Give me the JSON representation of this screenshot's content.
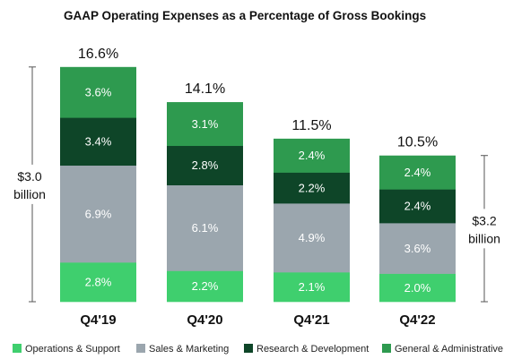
{
  "chart_data": {
    "type": "bar",
    "stacked": true,
    "title": "GAAP Operating Expenses as a Percentage of Gross Bookings",
    "categories": [
      "Q4'19",
      "Q4'20",
      "Q4'21",
      "Q4'22"
    ],
    "series": [
      {
        "name": "Operations & Support",
        "color": "#3fcf6e",
        "values": [
          2.8,
          2.2,
          2.1,
          2.0
        ],
        "labels": [
          "2.8%",
          "2.2%",
          "2.1%",
          "2.0%"
        ]
      },
      {
        "name": "Sales & Marketing",
        "color": "#9ba6ae",
        "values": [
          6.9,
          6.1,
          4.9,
          3.6
        ],
        "labels": [
          "6.9%",
          "6.1%",
          "4.9%",
          "3.6%"
        ]
      },
      {
        "name": "Research & Development",
        "color": "#0e4528",
        "values": [
          3.4,
          2.8,
          2.2,
          2.4
        ],
        "labels": [
          "3.4%",
          "2.8%",
          "2.2%",
          "2.4%"
        ]
      },
      {
        "name": "General & Administrative",
        "color": "#2e9a4f",
        "values": [
          3.6,
          3.1,
          2.4,
          2.4
        ],
        "labels": [
          "3.6%",
          "3.1%",
          "2.4%",
          "2.4%"
        ]
      }
    ],
    "totals": [
      "16.6%",
      "14.1%",
      "11.5%",
      "10.5%"
    ],
    "annotations": [
      {
        "category": "Q4'19",
        "side": "left",
        "lines": [
          "$3.0",
          "billion"
        ]
      },
      {
        "category": "Q4'22",
        "side": "right",
        "lines": [
          "$3.2",
          "billion"
        ]
      }
    ],
    "legend_position": "bottom",
    "grid": false,
    "ylim": [
      0,
      16.6
    ]
  }
}
